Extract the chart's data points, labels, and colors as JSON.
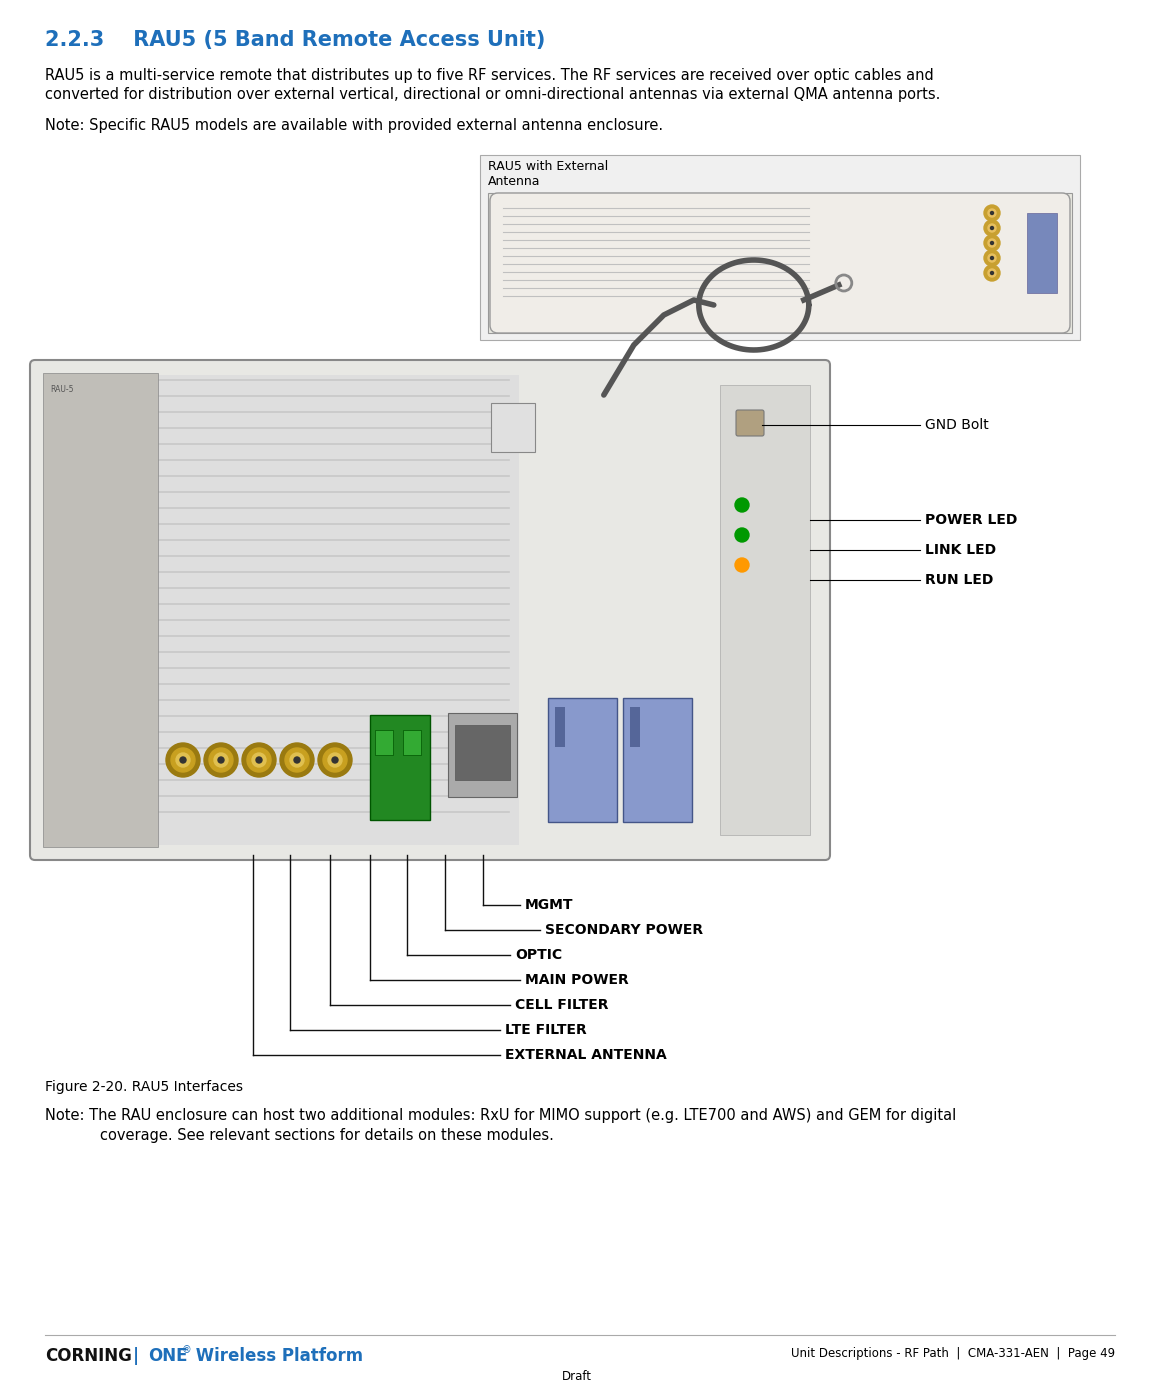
{
  "background_color": "#ffffff",
  "heading_number": "2.2.3",
  "heading_text": "RAU5 (5 Band Remote Access Unit)",
  "heading_color": "#1e6fba",
  "heading_fontsize": 15,
  "body_text_1a": "RAU5 is a multi-service remote that distributes up to five RF services. The RF services are received over optic cables and",
  "body_text_1b": "converted for distribution over external vertical, directional or omni-directional antennas via external QMA antenna ports.",
  "note_1": "Note: Specific RAU5 models are available with provided external antenna enclosure.",
  "top_image_label": "RAU5 with External\nAntenna",
  "figure_caption": "Figure 2-20. RAU5 Interfaces",
  "note_2_line1": "Note: The RAU enclosure can host two additional modules: RxU for MIMO support (e.g. LTE700 and AWS) and GEM for digital",
  "note_2_line2": "           coverage. See relevant sections for details on these modules.",
  "right_labels": [
    "GND Bolt",
    "POWER LED",
    "LINK LED",
    "RUN LED"
  ],
  "bottom_labels": [
    "MGMT",
    "SECONDARY POWER",
    "OPTIC",
    "MAIN POWER",
    "CELL FILTER",
    "LTE FILTER",
    "EXTERNAL ANTENNA"
  ],
  "footer_corning": "CORNING",
  "footer_one": "ONE",
  "footer_reg": "®",
  "footer_wireless": " Wireless Platform",
  "footer_right": "Unit Descriptions - RF Path",
  "footer_doc": "CMA-331-AEN",
  "footer_page": "Page 49",
  "footer_center": "Draft",
  "body_fontsize": 10.5,
  "note_fontsize": 10.5,
  "caption_fontsize": 10,
  "footer_fontsize": 8.5,
  "text_color": "#000000",
  "border_color": "#888888"
}
